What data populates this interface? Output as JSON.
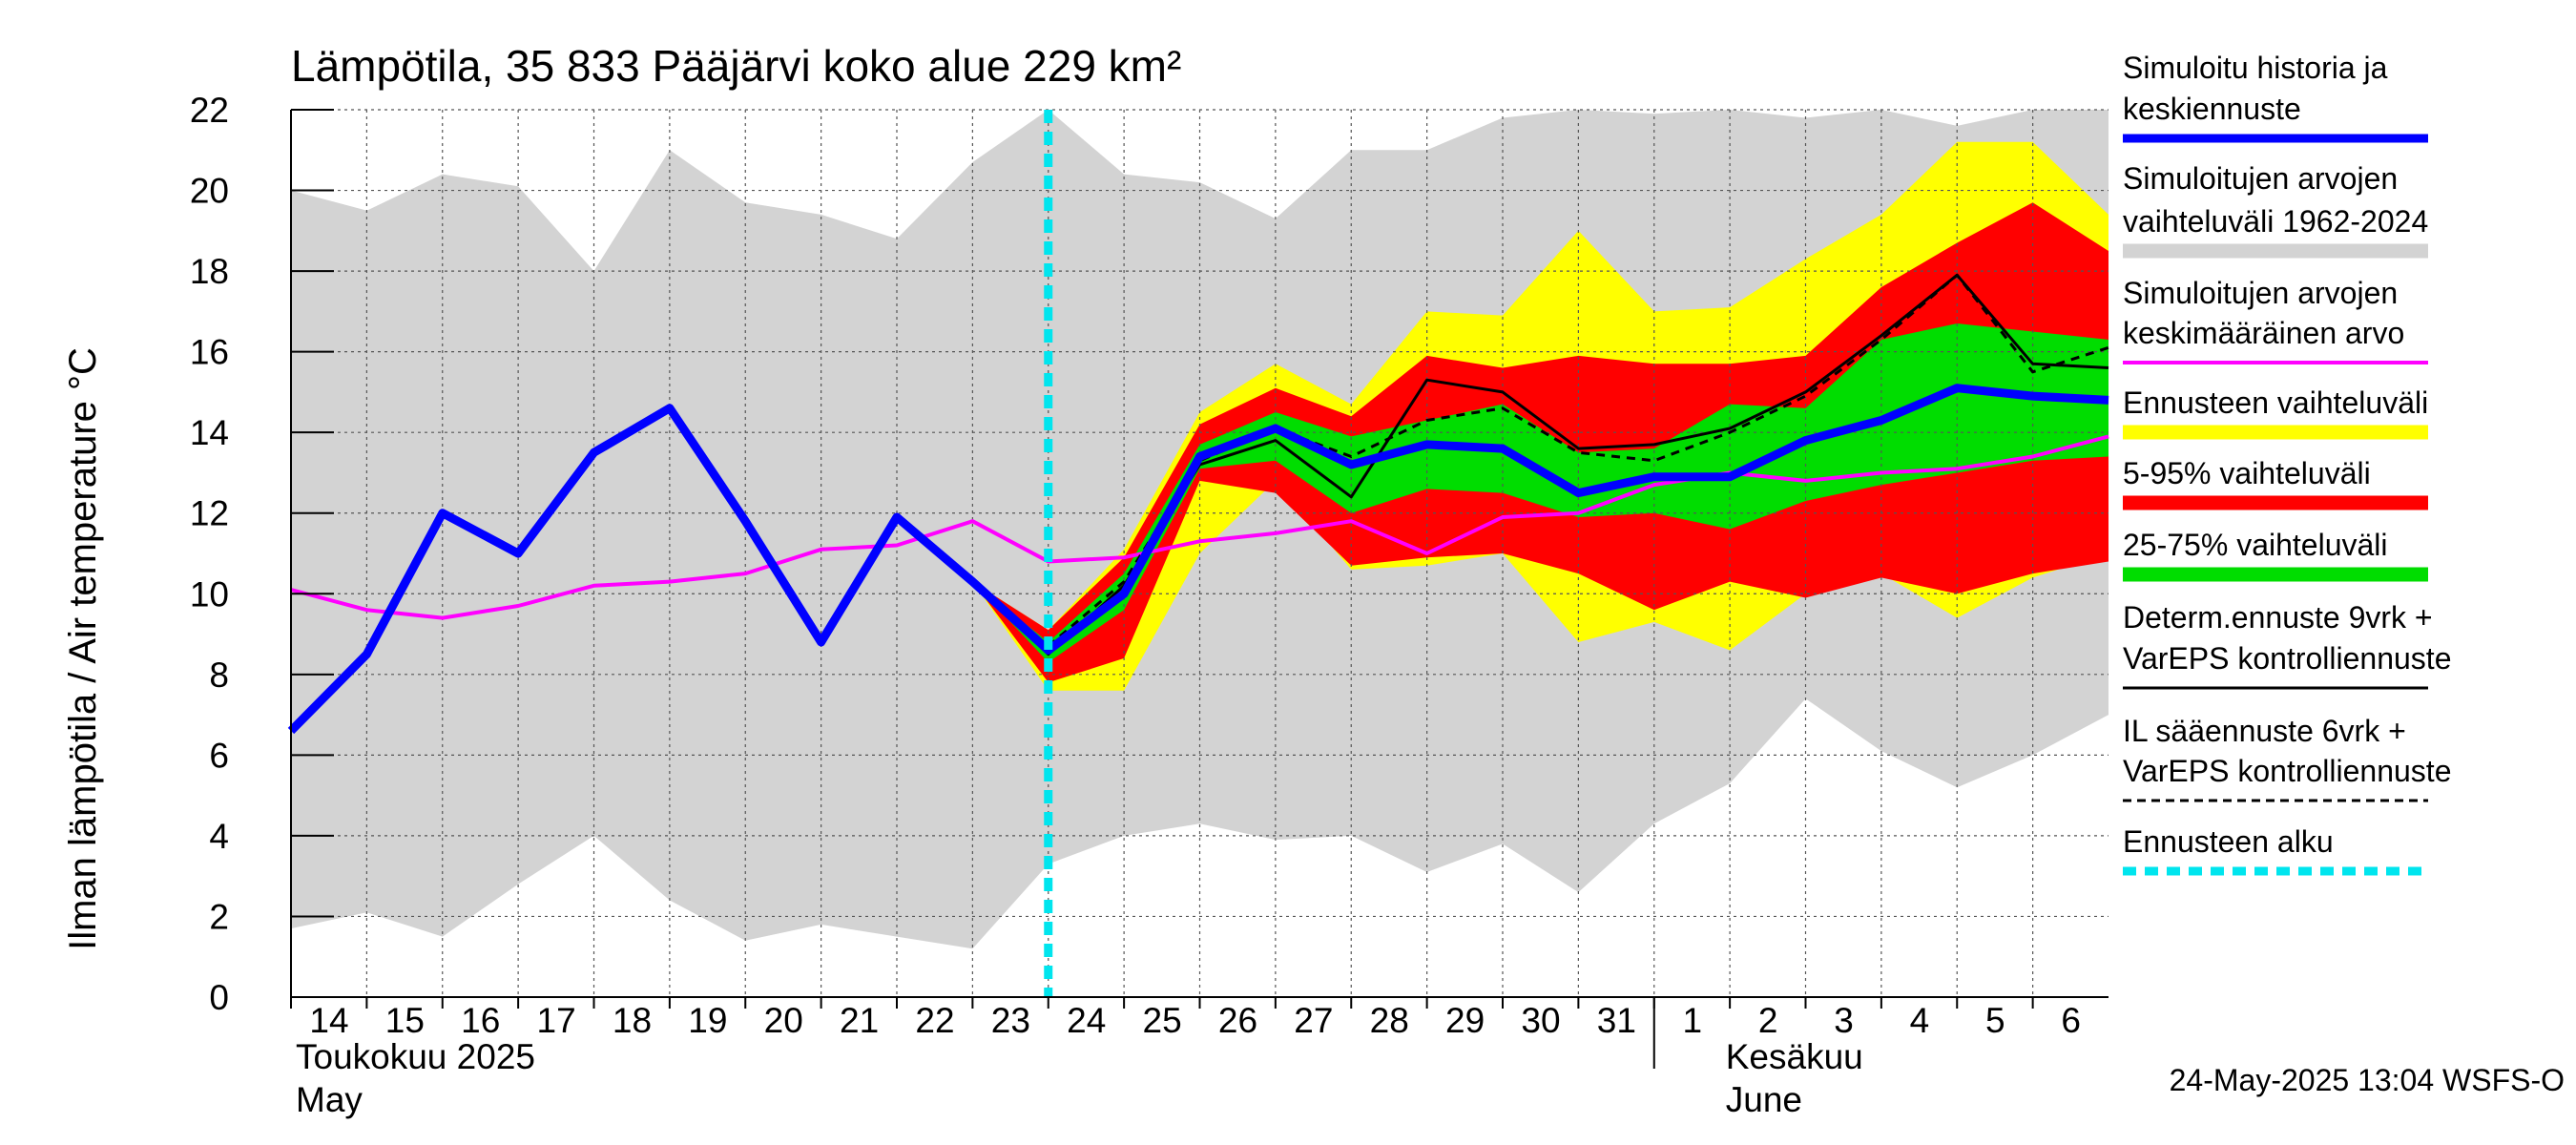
{
  "chart_data": {
    "type": "area",
    "title": "Lämpötila, 35 833 Pääjärvi koko alue 229 km²",
    "ylabel": "Ilman lämpötila / Air temperature    °C",
    "ylim": [
      0,
      22
    ],
    "yticks": [
      0,
      2,
      4,
      6,
      8,
      10,
      12,
      14,
      16,
      18,
      20,
      22
    ],
    "grid": true,
    "legend_placement": "right",
    "x_start": "2025-05-14",
    "x_end": "2025-06-06",
    "x_tick_labels": [
      "14",
      "15",
      "16",
      "17",
      "18",
      "19",
      "20",
      "21",
      "22",
      "23",
      "24",
      "25",
      "26",
      "27",
      "28",
      "29",
      "30",
      "31",
      "1",
      "2",
      "3",
      "4",
      "5",
      "6"
    ],
    "months": [
      {
        "line1": "Toukokuu  2025",
        "line2": "May"
      },
      {
        "line1": "Kesäkuu",
        "line2": "June"
      }
    ],
    "forecast_start": "2025-05-24",
    "x": [
      "2025-05-14",
      "2025-05-15",
      "2025-05-16",
      "2025-05-17",
      "2025-05-18",
      "2025-05-19",
      "2025-05-20",
      "2025-05-21",
      "2025-05-22",
      "2025-05-23",
      "2025-05-24",
      "2025-05-25",
      "2025-05-26",
      "2025-05-27",
      "2025-05-28",
      "2025-05-29",
      "2025-05-30",
      "2025-05-31",
      "2025-06-01",
      "2025-06-02",
      "2025-06-03",
      "2025-06-04",
      "2025-06-05",
      "2025-06-06",
      "2025-06-07"
    ],
    "series": [
      {
        "name": "Simuloitujen arvojen vaihteluväli 1962-2024",
        "role": "hist_range",
        "color": "#d3d3d3",
        "upper": [
          20.0,
          19.5,
          20.4,
          20.1,
          18.0,
          21.0,
          19.7,
          19.4,
          18.8,
          20.7,
          22.0,
          20.4,
          20.2,
          19.3,
          21.0,
          21.0,
          21.8,
          22.0,
          21.9,
          22.0,
          21.8,
          22.0,
          21.6,
          22.0,
          22.0
        ],
        "lower": [
          1.7,
          2.1,
          1.5,
          2.8,
          4.0,
          2.4,
          1.4,
          1.8,
          1.5,
          1.2,
          3.3,
          4.0,
          4.3,
          3.9,
          4.0,
          3.1,
          3.8,
          2.6,
          4.3,
          5.3,
          7.4,
          6.1,
          5.2,
          6.0,
          7.0
        ]
      },
      {
        "name": "Ennusteen vaihteluväli",
        "role": "forecast_range",
        "color": "#ffff00",
        "upper": [
          null,
          null,
          null,
          null,
          null,
          null,
          null,
          null,
          null,
          10.3,
          9.1,
          11.1,
          14.5,
          15.7,
          14.7,
          17.0,
          16.9,
          19.0,
          17.0,
          17.1,
          18.3,
          19.4,
          21.2,
          21.2,
          19.4
        ],
        "lower": [
          null,
          null,
          null,
          null,
          null,
          null,
          null,
          null,
          null,
          10.3,
          7.6,
          7.6,
          11.0,
          12.8,
          10.6,
          10.7,
          11.0,
          8.8,
          9.3,
          8.6,
          10.0,
          10.5,
          9.4,
          10.4,
          11.0
        ]
      },
      {
        "name": "5-95% vaihteluväli",
        "role": "p5_95",
        "color": "#ff0000",
        "upper": [
          null,
          null,
          null,
          null,
          null,
          null,
          null,
          null,
          null,
          10.3,
          9.1,
          10.9,
          14.2,
          15.1,
          14.4,
          15.9,
          15.6,
          15.9,
          15.7,
          15.7,
          15.9,
          17.6,
          18.7,
          19.7,
          18.5
        ],
        "lower": [
          null,
          null,
          null,
          null,
          null,
          null,
          null,
          null,
          null,
          10.3,
          7.8,
          8.4,
          12.8,
          12.5,
          10.7,
          10.9,
          11.0,
          10.5,
          9.6,
          10.3,
          9.9,
          10.4,
          10.0,
          10.5,
          10.8
        ]
      },
      {
        "name": "25-75% vaihteluväli",
        "role": "p25_75",
        "color": "#00dd00",
        "upper": [
          null,
          null,
          null,
          null,
          null,
          null,
          null,
          null,
          null,
          10.3,
          8.8,
          10.5,
          13.7,
          14.5,
          13.9,
          14.3,
          14.7,
          13.5,
          13.6,
          14.7,
          14.6,
          16.3,
          16.7,
          16.5,
          16.3
        ],
        "lower": [
          null,
          null,
          null,
          null,
          null,
          null,
          null,
          null,
          null,
          10.3,
          8.3,
          9.6,
          13.1,
          13.3,
          12.0,
          12.6,
          12.5,
          11.9,
          12.0,
          11.6,
          12.3,
          12.7,
          13.0,
          13.3,
          13.4
        ]
      },
      {
        "name": "Simuloitujen arvojen keskimääräinen arvo",
        "role": "hist_mean",
        "color": "#ff00ff",
        "values": [
          10.1,
          9.6,
          9.4,
          9.7,
          10.2,
          10.3,
          10.5,
          11.1,
          11.2,
          11.8,
          10.8,
          10.9,
          11.3,
          11.5,
          11.8,
          11.0,
          11.9,
          12.0,
          12.7,
          13.0,
          12.8,
          13.0,
          13.1,
          13.4,
          13.9
        ]
      },
      {
        "name": "Determ.ennuste 9vrk + VarEPS kontrolliennuste",
        "role": "deterministic",
        "color": "#000000",
        "values": [
          null,
          null,
          null,
          null,
          null,
          null,
          null,
          null,
          11.9,
          10.3,
          8.5,
          10.2,
          13.2,
          13.8,
          12.4,
          15.3,
          15.0,
          13.6,
          13.7,
          14.1,
          15.0,
          16.4,
          17.9,
          15.7,
          15.6
        ]
      },
      {
        "name": "IL sääennuste 6vrk + VarEPS kontrolliennuste",
        "role": "il_forecast",
        "color": "#000000",
        "values": [
          null,
          null,
          null,
          null,
          null,
          null,
          null,
          null,
          null,
          null,
          8.7,
          10.3,
          13.3,
          14.1,
          13.4,
          14.3,
          14.6,
          13.5,
          13.3,
          14.0,
          14.9,
          16.3,
          17.9,
          15.5,
          16.1
        ]
      },
      {
        "name": "Simuloitu historia ja keskiennuste",
        "role": "sim_history",
        "color": "#0000ff",
        "values": [
          6.6,
          8.5,
          12.0,
          11.0,
          13.5,
          14.6,
          11.8,
          8.8,
          11.9,
          10.3,
          8.6,
          10.0,
          13.4,
          14.1,
          13.2,
          13.7,
          13.6,
          12.5,
          12.9,
          12.9,
          13.8,
          14.3,
          15.1,
          14.9,
          14.8
        ]
      }
    ]
  },
  "legend": [
    {
      "lines": [
        "Simuloitu historia ja",
        "keskiennuste"
      ],
      "color": "#0000ff",
      "style": "thick"
    },
    {
      "lines": [
        "Simuloitujen arvojen",
        "vaihteluväli 1962-2024"
      ],
      "color": "#d3d3d3",
      "style": "band"
    },
    {
      "lines": [
        "Simuloitujen arvojen",
        "keskimääräinen arvo"
      ],
      "color": "#ff00ff",
      "style": "line"
    },
    {
      "lines": [
        "Ennusteen vaihteluväli"
      ],
      "color": "#ffff00",
      "style": "band"
    },
    {
      "lines": [
        "5-95% vaihteluväli"
      ],
      "color": "#ff0000",
      "style": "band"
    },
    {
      "lines": [
        "25-75% vaihteluväli"
      ],
      "color": "#00dd00",
      "style": "band"
    },
    {
      "lines": [
        "Determ.ennuste 9vrk +",
        "VarEPS kontrolliennuste"
      ],
      "color": "#000000",
      "style": "thin"
    },
    {
      "lines": [
        "IL sääennuste 6vrk  +",
        "  VarEPS kontrolliennuste"
      ],
      "color": "#000000",
      "style": "dashed"
    },
    {
      "lines": [
        "Ennusteen alku"
      ],
      "color": "#00e5ee",
      "style": "dotted"
    }
  ],
  "footer": "24-May-2025 13:04 WSFS-O"
}
